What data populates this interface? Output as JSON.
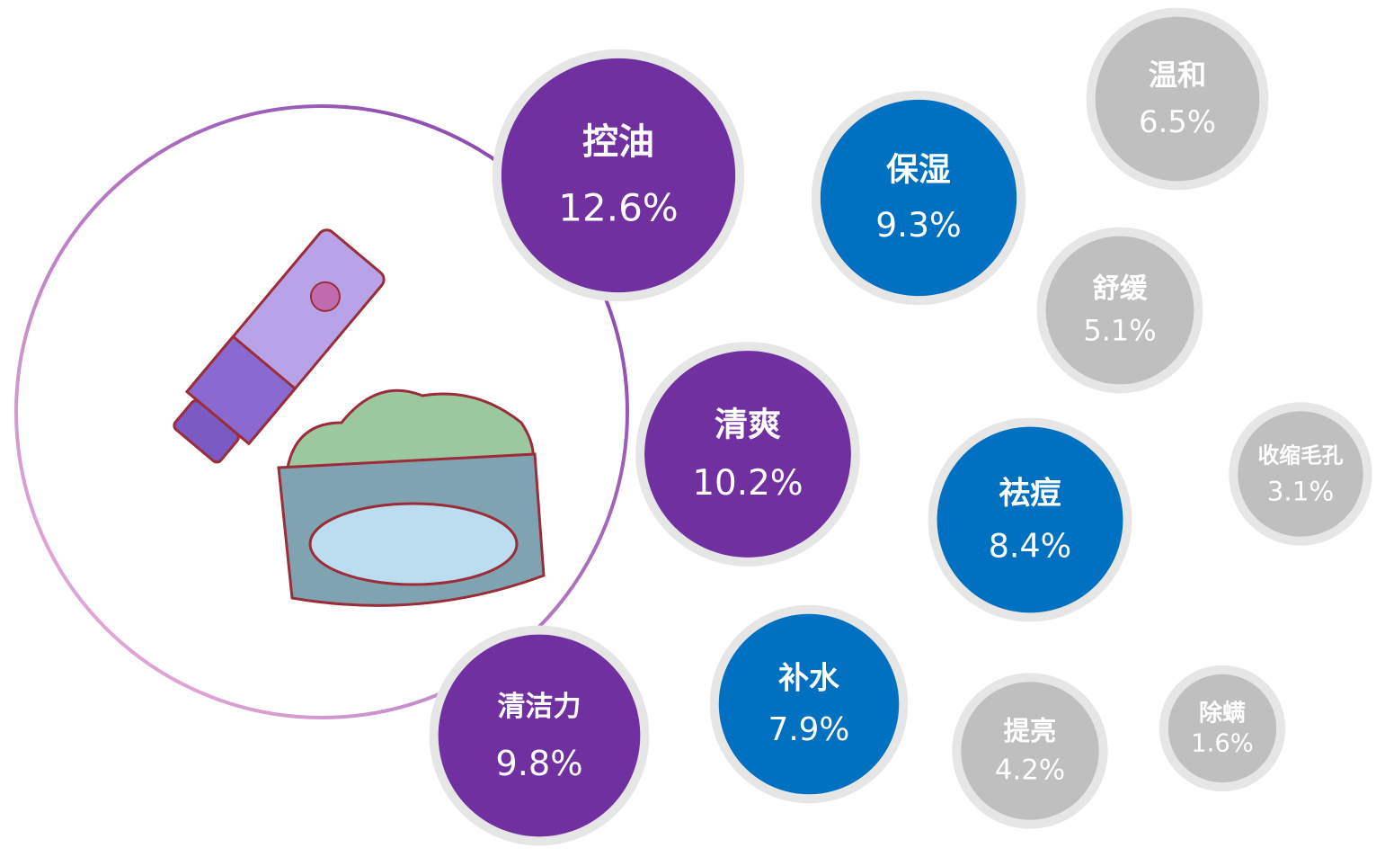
{
  "chart_data": {
    "type": "bubble",
    "categories": [
      "控油",
      "清爽",
      "清洁力",
      "保湿",
      "祛痘",
      "补水",
      "温和",
      "舒缓",
      "收缩毛孔",
      "提亮",
      "除螨"
    ],
    "values": [
      12.6,
      10.2,
      9.8,
      9.3,
      8.4,
      7.9,
      6.5,
      5.1,
      3.1,
      4.2,
      1.6
    ],
    "value_labels": [
      "12.6%",
      "10.2%",
      "9.8%",
      "9.3%",
      "8.4%",
      "7.9%",
      "6.5%",
      "5.1%",
      "3.1%",
      "4.2%",
      "1.6%"
    ],
    "colors": [
      "#7030a0",
      "#7030a0",
      "#7030a0",
      "#0070c0",
      "#0070c0",
      "#0070c0",
      "#bfbfbf",
      "#bfbfbf",
      "#bfbfbf",
      "#bfbfbf",
      "#bfbfbf"
    ]
  }
}
